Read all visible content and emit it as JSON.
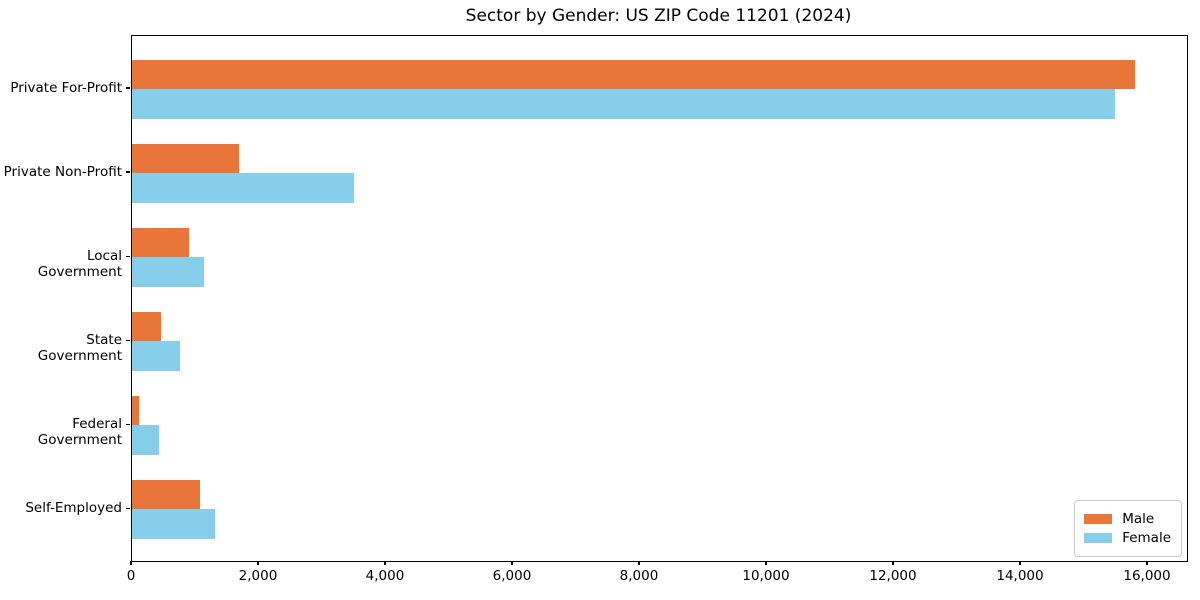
{
  "chart": {
    "title": "Sector by Gender: US ZIP Code 11201 (2024)"
  },
  "chart_data": {
    "type": "bar",
    "orientation": "horizontal",
    "title": "Sector by Gender: US ZIP Code 11201 (2024)",
    "categories": [
      "Private For-Profit",
      "Private Non-Profit",
      "Local Government",
      "State Government",
      "Federal Government",
      "Self-Employed"
    ],
    "series": [
      {
        "name": "Male",
        "color": "#e8763b",
        "values": [
          15800,
          1690,
          890,
          460,
          105,
          1070
        ]
      },
      {
        "name": "Female",
        "color": "#87ceeb",
        "values": [
          15480,
          3490,
          1130,
          760,
          430,
          1300
        ]
      }
    ],
    "xlabel": "",
    "ylabel": "",
    "xlim": [
      0,
      16614
    ],
    "xticks": [
      0,
      2000,
      4000,
      6000,
      8000,
      10000,
      12000,
      14000,
      16000
    ],
    "xtick_labels": [
      "0",
      "2,000",
      "4,000",
      "6,000",
      "8,000",
      "10,000",
      "12,000",
      "14,000",
      "16,000"
    ],
    "legend_position": "lower right",
    "grid": false
  }
}
